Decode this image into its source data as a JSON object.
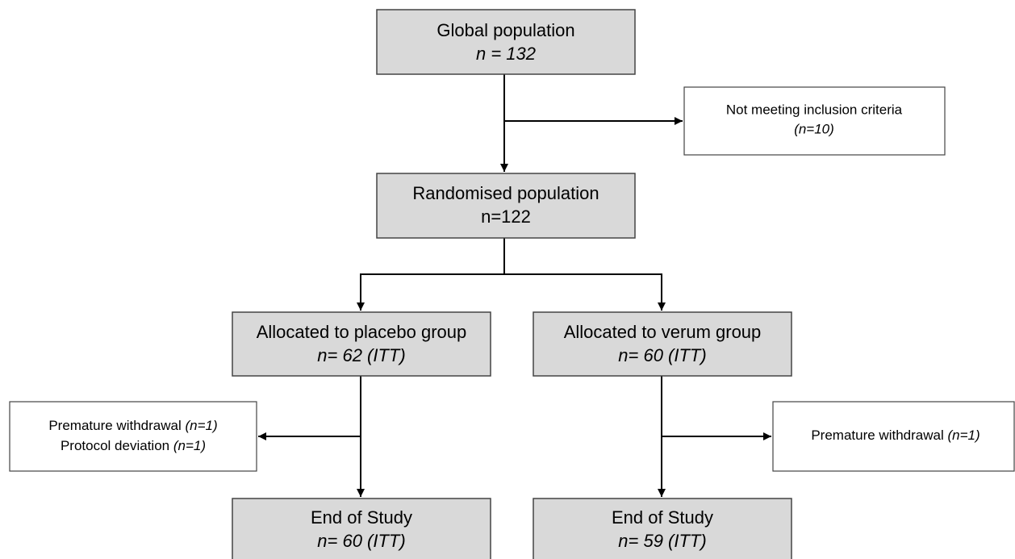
{
  "nodes": [
    {
      "title": "Global population",
      "detail": "n = 132"
    },
    {
      "title": "Not meeting inclusion criteria",
      "detail": "(n=10)"
    },
    {
      "title": "Randomised population",
      "detail": "n=122"
    },
    {
      "title": "Allocated to placebo group",
      "detail": "n= 62 (ITT)"
    },
    {
      "title": "Allocated to verum group",
      "detail": "n= 60 (ITT)"
    },
    {
      "lines": [
        {
          "text": "Premature withdrawal",
          "note": "(n=1)"
        },
        {
          "text": "Protocol deviation",
          "note": "(n=1)"
        }
      ]
    },
    {
      "lines": [
        {
          "text": "Premature withdrawal",
          "note": "(n=1)"
        }
      ]
    },
    {
      "title": "End of Study",
      "detail": "n= 60 (ITT)"
    },
    {
      "title": "End of Study",
      "detail": "n= 59 (ITT)"
    }
  ]
}
